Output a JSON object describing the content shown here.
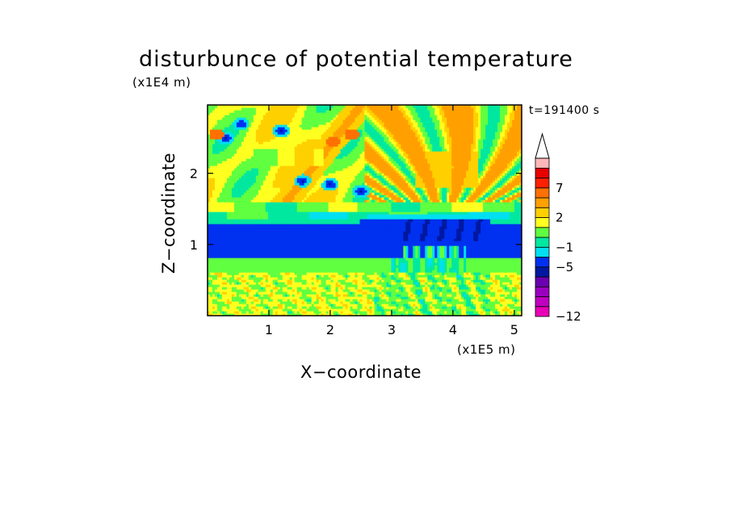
{
  "chart_data": {
    "type": "heatmap",
    "title": "disturbunce of potential temperature",
    "time_label": "t=191400 s",
    "xlabel": "X−coordinate",
    "ylabel": "Z−coordinate",
    "x_units": "(x1E5 m)",
    "y_units": "(x1E4 m)",
    "xlim": [
      0,
      5.12
    ],
    "ylim": [
      0,
      2.96
    ],
    "x_ticks": [
      1,
      2,
      3,
      4,
      5
    ],
    "x_tick_labels": [
      "1",
      "2",
      "3",
      "4",
      "5"
    ],
    "y_ticks": [
      1,
      2
    ],
    "y_tick_labels": [
      "1",
      "2"
    ],
    "colorbar": {
      "levels": [
        -12,
        -11,
        -10,
        -9,
        -7,
        -5,
        -3,
        -1,
        0,
        1,
        2,
        3,
        5,
        7,
        9,
        11
      ],
      "tick_values": [
        -12,
        -5,
        -1,
        2,
        7
      ],
      "tick_labels": [
        "−12",
        "−5",
        "−1",
        "2",
        "7"
      ],
      "colors": [
        "#e800b8",
        "#c000c0",
        "#9a00c0",
        "#6a00b0",
        "#0018a0",
        "#0030f0",
        "#00e0f0",
        "#00e8a0",
        "#60ff40",
        "#ffff20",
        "#ffd000",
        "#ffa000",
        "#ff7000",
        "#ff2000",
        "#e80000",
        "#ffb8b8"
      ],
      "extend": "max"
    },
    "layers": [
      {
        "z_range": [
          2.3,
          2.96
        ],
        "description_value": "alternating +1..+5 with -1 cells",
        "typical_value": 1
      },
      {
        "z_range": [
          1.6,
          2.3
        ],
        "typical_value": 1.5
      },
      {
        "z_range": [
          1.35,
          1.6
        ],
        "typical_value": -0.5
      },
      {
        "z_range": [
          0.82,
          1.35
        ],
        "typical_value": -4
      },
      {
        "z_range": [
          0.6,
          0.82
        ],
        "typical_value": 0.5
      },
      {
        "z_range": [
          0.0,
          0.6
        ],
        "typical_value": 1.2
      }
    ]
  }
}
